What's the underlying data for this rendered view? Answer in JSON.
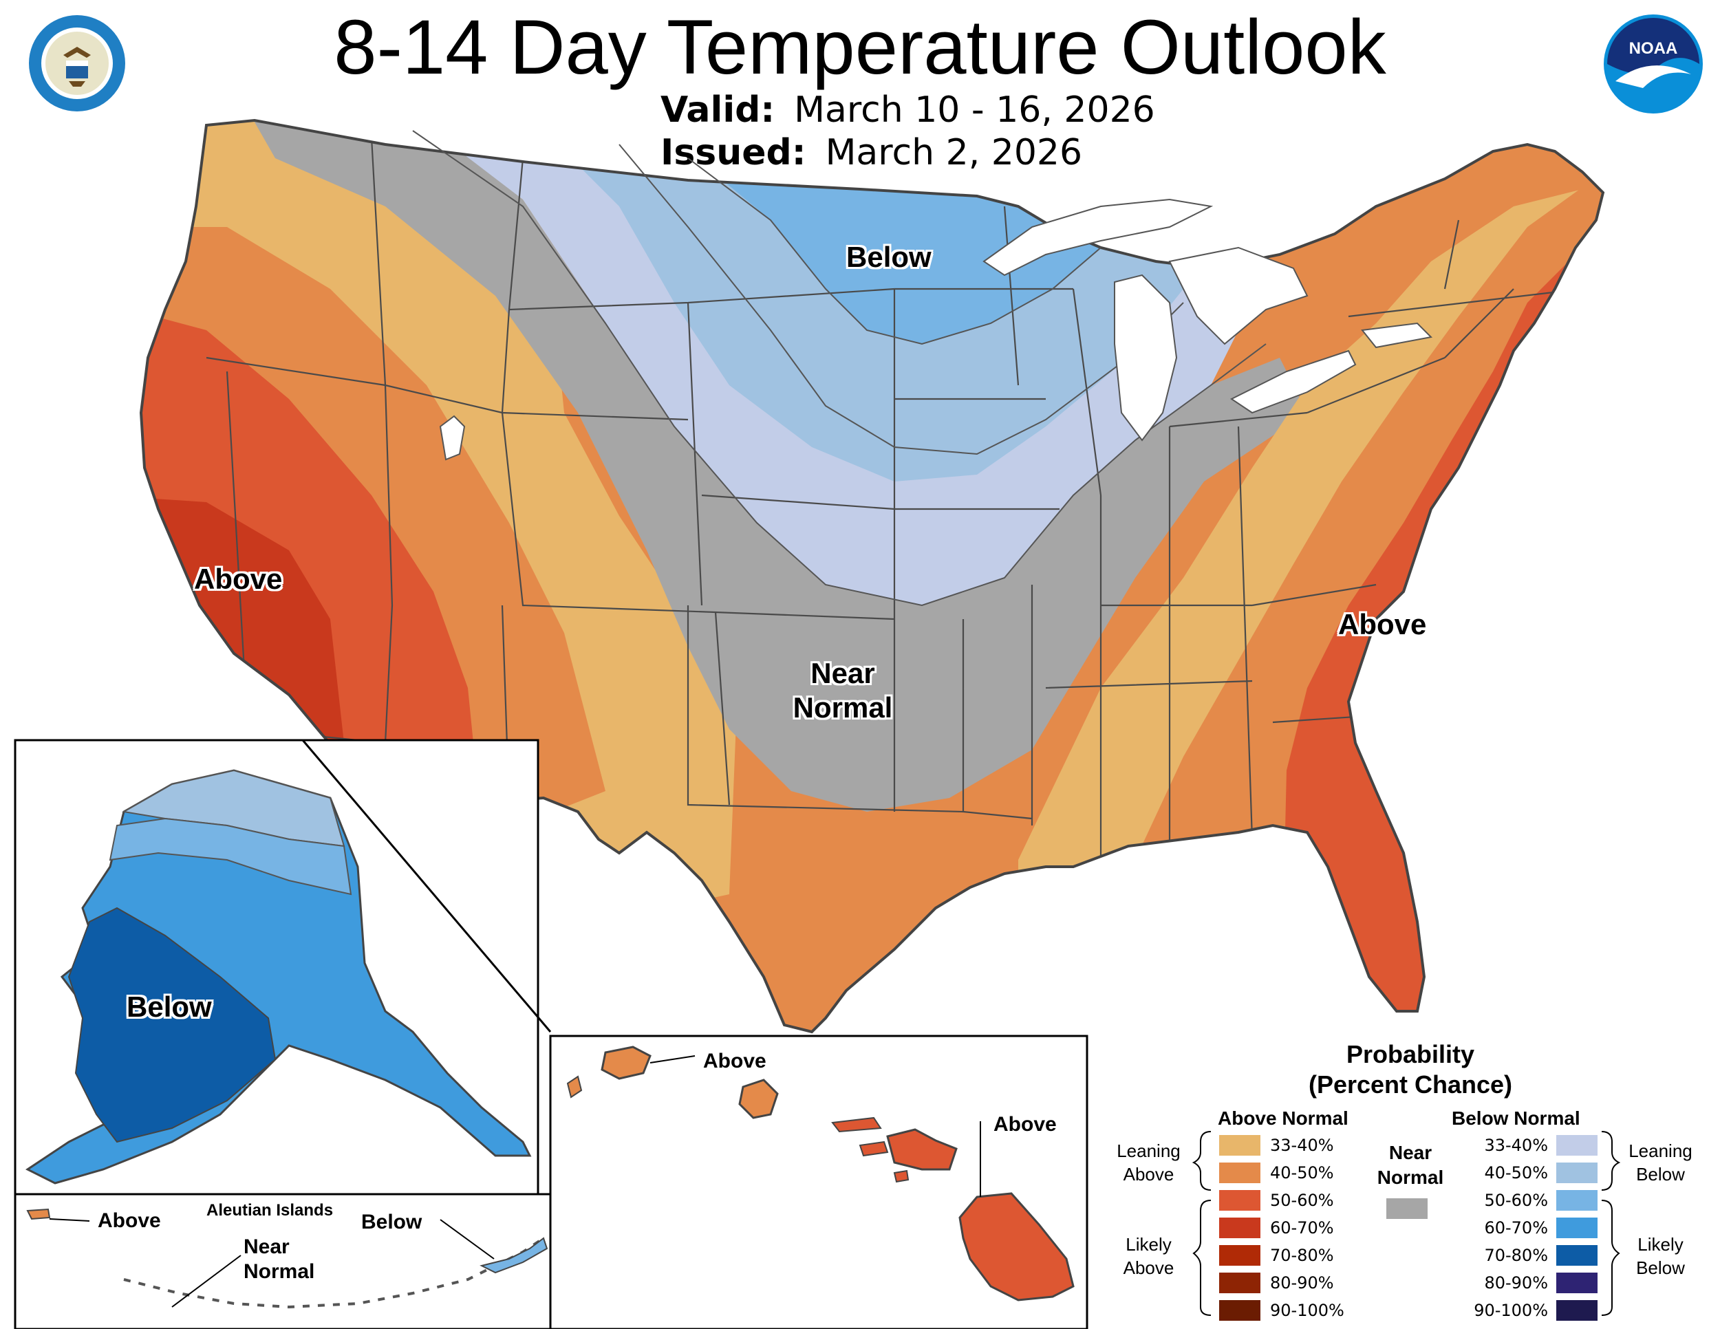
{
  "title": "8-14 Day Temperature Outlook",
  "valid": {
    "label": "Valid:",
    "value": "March 10 - 16, 2026"
  },
  "issued": {
    "label": "Issued:",
    "value": "March 2, 2026"
  },
  "logos": {
    "left": "doc-seal-icon",
    "right": "noaa-logo-icon"
  },
  "map_labels": {
    "below_north": "Below",
    "above_west": "Above",
    "above_east": "Above",
    "near_normal_1": "Near",
    "near_normal_2": "Normal"
  },
  "alaska": {
    "label": "Below"
  },
  "aleutians": {
    "title": "Aleutian Islands",
    "above": "Above",
    "below": "Below",
    "near_1": "Near",
    "near_2": "Normal"
  },
  "hawaii": {
    "above_1": "Above",
    "above_2": "Above"
  },
  "legend": {
    "title_1": "Probability",
    "title_2": "(Percent Chance)",
    "above_head": "Above Normal",
    "below_head": "Below Normal",
    "near_1": "Near",
    "near_2": "Normal",
    "leaning_above_1": "Leaning",
    "leaning_above_2": "Above",
    "likely_above_1": "Likely",
    "likely_above_2": "Above",
    "leaning_below_1": "Leaning",
    "leaning_below_2": "Below",
    "likely_below_1": "Likely",
    "likely_below_2": "Below",
    "above_items": [
      {
        "label": "33-40%",
        "color": "#e8b66a"
      },
      {
        "label": "40-50%",
        "color": "#e48a4a"
      },
      {
        "label": "50-60%",
        "color": "#dd5732"
      },
      {
        "label": "60-70%",
        "color": "#c9391d"
      },
      {
        "label": "70-80%",
        "color": "#b02a06"
      },
      {
        "label": "80-90%",
        "color": "#8e2404"
      },
      {
        "label": "90-100%",
        "color": "#6b1c02"
      }
    ],
    "below_items": [
      {
        "label": "33-40%",
        "color": "#c2cde8"
      },
      {
        "label": "40-50%",
        "color": "#a0c2e1"
      },
      {
        "label": "50-60%",
        "color": "#77b4e4"
      },
      {
        "label": "60-70%",
        "color": "#3f9bdd"
      },
      {
        "label": "70-80%",
        "color": "#0d5ca6"
      },
      {
        "label": "80-90%",
        "color": "#2e2373"
      },
      {
        "label": "90-100%",
        "color": "#1e1a4f"
      }
    ],
    "near_color": "#a6a6a6"
  }
}
